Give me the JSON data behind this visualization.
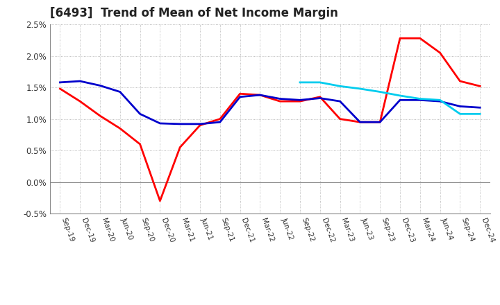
{
  "title": "[6493]  Trend of Mean of Net Income Margin",
  "ylim": [
    -0.005,
    0.025
  ],
  "yticks": [
    -0.005,
    0.0,
    0.005,
    0.01,
    0.015,
    0.02,
    0.025
  ],
  "ytick_labels": [
    "-0.5%",
    "0.0%",
    "0.5%",
    "1.0%",
    "1.5%",
    "2.0%",
    "2.5%"
  ],
  "x_labels": [
    "Sep-19",
    "Dec-19",
    "Mar-20",
    "Jun-20",
    "Sep-20",
    "Dec-20",
    "Mar-21",
    "Jun-21",
    "Sep-21",
    "Dec-21",
    "Mar-22",
    "Jun-22",
    "Sep-22",
    "Dec-22",
    "Mar-23",
    "Jun-23",
    "Sep-23",
    "Dec-23",
    "Mar-24",
    "Jun-24",
    "Sep-24",
    "Dec-24"
  ],
  "colors": {
    "3y": "#FF0000",
    "5y": "#0000CC",
    "7y": "#00CCEE",
    "10y": "#007700"
  },
  "background_color": "#FFFFFF",
  "grid_color": "#AAAAAA",
  "series_3y": [
    0.0148,
    0.0128,
    0.0105,
    0.0085,
    0.006,
    -0.003,
    0.0055,
    0.009,
    0.01,
    0.014,
    0.0138,
    0.0128,
    0.0128,
    0.0135,
    0.01,
    0.0095,
    0.0095,
    0.0228,
    0.0228,
    0.0205,
    0.016,
    0.0152
  ],
  "series_5y": [
    0.0158,
    0.016,
    0.0153,
    0.0143,
    0.0108,
    0.0093,
    0.0092,
    0.0092,
    0.0095,
    0.0135,
    0.0138,
    0.0132,
    0.013,
    0.0133,
    0.0128,
    0.0095,
    0.0095,
    0.013,
    0.013,
    0.0128,
    0.012,
    0.0118
  ],
  "series_7y": [
    null,
    null,
    null,
    null,
    null,
    null,
    null,
    null,
    null,
    null,
    null,
    null,
    0.0158,
    0.0158,
    0.0152,
    0.0148,
    0.0143,
    0.0137,
    0.0132,
    0.013,
    0.0108,
    0.0108
  ],
  "series_10y": [
    null,
    null,
    null,
    null,
    null,
    null,
    null,
    null,
    null,
    null,
    null,
    null,
    null,
    null,
    null,
    null,
    null,
    null,
    null,
    null,
    null,
    null
  ]
}
